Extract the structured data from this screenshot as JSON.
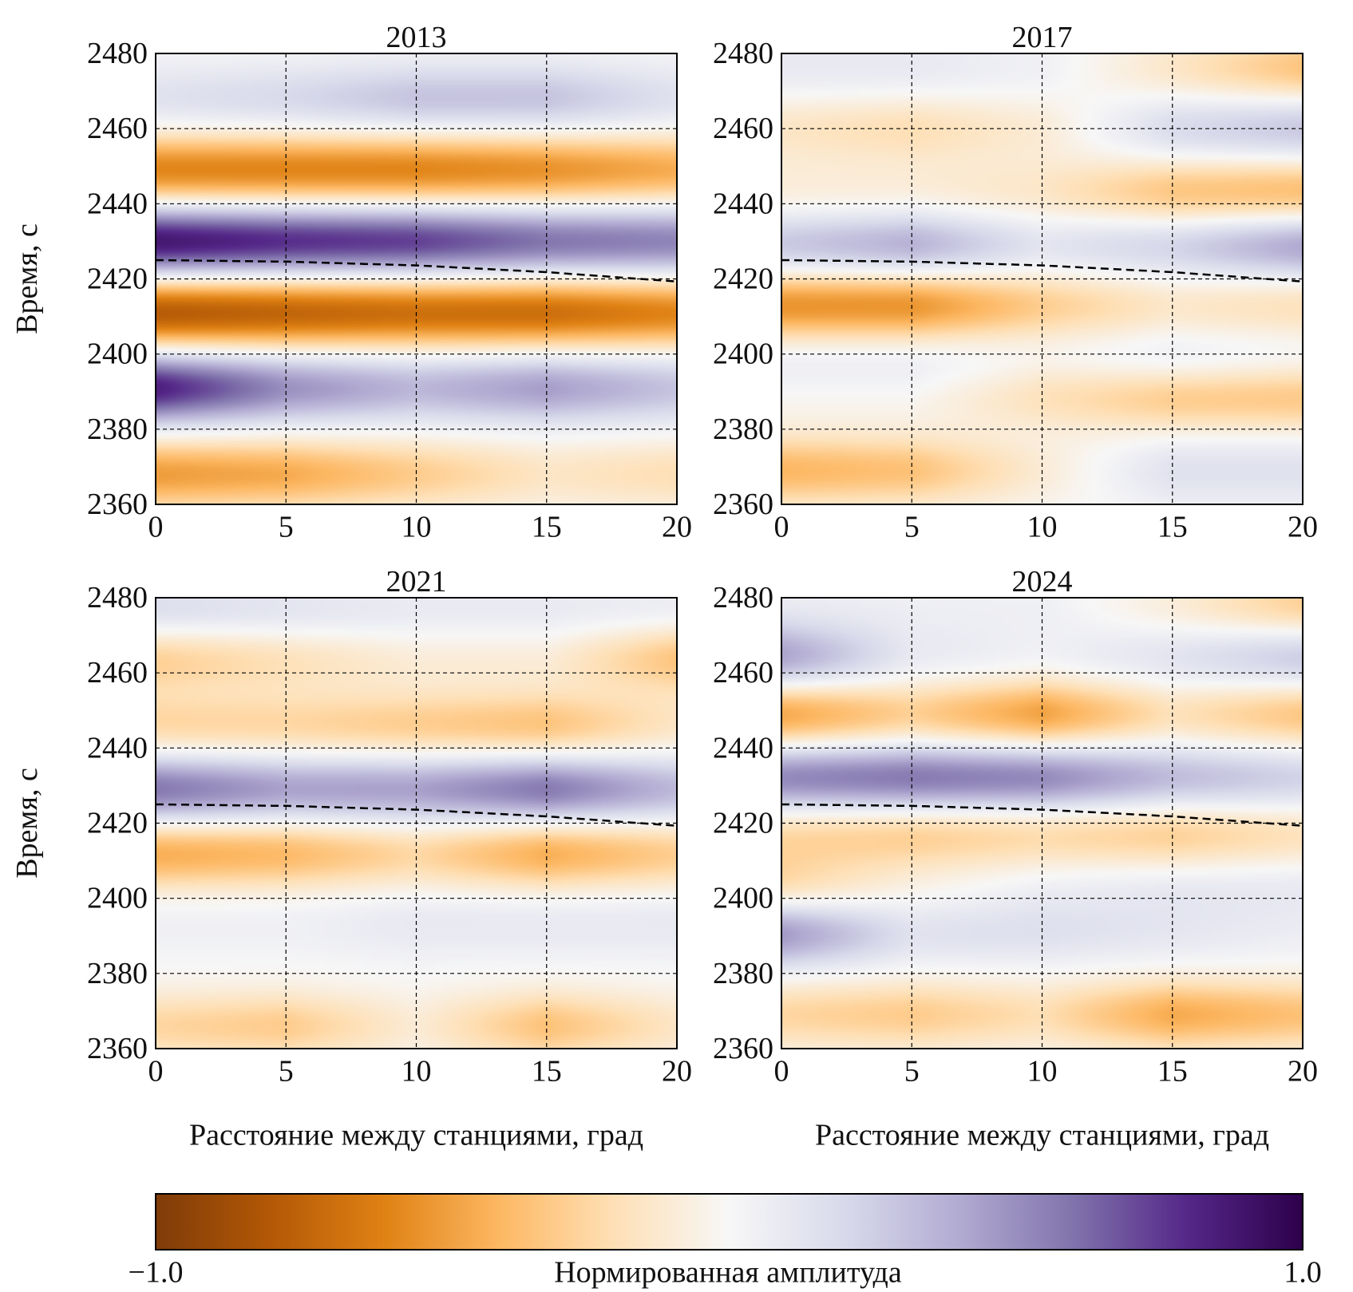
{
  "figure": {
    "colorbar": {
      "label": "Нормированная амплитуда",
      "min_label": "−1.0",
      "max_label": "1.0",
      "vmin": -1.0,
      "vmax": 1.0,
      "colormap": "PuOr",
      "colors": [
        "#7f3b08",
        "#b35806",
        "#e08214",
        "#fdb863",
        "#fee0b6",
        "#f7f7f7",
        "#d8daeb",
        "#b2abd2",
        "#8073ac",
        "#542788",
        "#2d004b"
      ]
    }
  },
  "chart_data": [
    {
      "type": "heatmap",
      "title": "2013",
      "xlabel": "",
      "ylabel": "Время, с",
      "xlim": [
        0,
        20
      ],
      "ylim": [
        2360,
        2480
      ],
      "xticks": [
        "0",
        "5",
        "10",
        "15",
        "20"
      ],
      "yticks": [
        "2360",
        "2380",
        "2400",
        "2420",
        "2440",
        "2460",
        "2480"
      ],
      "grid": true,
      "bands": [
        {
          "t": 2468,
          "a": [
            0.15,
            0.2,
            0.3,
            0.3,
            0.15
          ]
        },
        {
          "t": 2449,
          "a": [
            -0.6,
            -0.6,
            -0.6,
            -0.55,
            -0.45
          ]
        },
        {
          "t": 2430,
          "a": [
            0.9,
            0.8,
            0.75,
            0.6,
            0.55
          ]
        },
        {
          "t": 2411,
          "a": [
            -0.8,
            -0.75,
            -0.7,
            -0.7,
            -0.6
          ]
        },
        {
          "t": 2391,
          "a": [
            0.85,
            0.5,
            0.35,
            0.45,
            0.3
          ]
        },
        {
          "t": 2368,
          "a": [
            -0.5,
            -0.45,
            -0.3,
            -0.15,
            -0.2
          ]
        }
      ],
      "reference_curve": {
        "x": [
          0,
          5,
          10,
          15,
          20
        ],
        "y": [
          2425.0,
          2424.6,
          2423.6,
          2421.8,
          2419.3
        ]
      }
    },
    {
      "type": "heatmap",
      "title": "2017",
      "xlabel": "",
      "ylabel": "",
      "xlim": [
        0,
        20
      ],
      "ylim": [
        2360,
        2480
      ],
      "xticks": [
        "0",
        "5",
        "10",
        "15",
        "20"
      ],
      "yticks": [
        "2360",
        "2380",
        "2400",
        "2420",
        "2440",
        "2460",
        "2480"
      ],
      "grid": true,
      "bands": [
        {
          "t": 2476,
          "a": [
            0.1,
            0.1,
            0.05,
            -0.15,
            -0.35
          ]
        },
        {
          "t": 2460,
          "a": [
            -0.15,
            -0.2,
            -0.1,
            0.2,
            0.3
          ]
        },
        {
          "t": 2443,
          "a": [
            -0.1,
            -0.1,
            -0.15,
            -0.35,
            -0.4
          ]
        },
        {
          "t": 2429,
          "a": [
            0.3,
            0.4,
            0.15,
            0.25,
            0.45
          ]
        },
        {
          "t": 2413,
          "a": [
            -0.55,
            -0.55,
            -0.3,
            -0.15,
            -0.2
          ]
        },
        {
          "t": 2397,
          "a": [
            0.1,
            0.1,
            0.05,
            0.15,
            0.1
          ]
        },
        {
          "t": 2389,
          "a": [
            -0.05,
            -0.05,
            -0.2,
            -0.35,
            -0.35
          ]
        },
        {
          "t": 2369,
          "a": [
            -0.4,
            -0.35,
            -0.1,
            0.15,
            0.15
          ]
        }
      ],
      "reference_curve": {
        "x": [
          0,
          5,
          10,
          15,
          20
        ],
        "y": [
          2425.0,
          2424.6,
          2423.6,
          2421.8,
          2419.3
        ]
      }
    },
    {
      "type": "heatmap",
      "title": "2021",
      "xlabel": "Расстояние между станциями, град",
      "ylabel": "Время, с",
      "xlim": [
        0,
        20
      ],
      "ylim": [
        2360,
        2480
      ],
      "xticks": [
        "0",
        "5",
        "10",
        "15",
        "20"
      ],
      "yticks": [
        "2360",
        "2380",
        "2400",
        "2420",
        "2440",
        "2460",
        "2480"
      ],
      "grid": true,
      "bands": [
        {
          "t": 2476,
          "a": [
            0.2,
            0.15,
            0.1,
            0.1,
            0.1
          ]
        },
        {
          "t": 2464,
          "a": [
            -0.3,
            -0.2,
            -0.1,
            -0.1,
            -0.35
          ]
        },
        {
          "t": 2446,
          "a": [
            -0.25,
            -0.25,
            -0.3,
            -0.35,
            -0.15
          ]
        },
        {
          "t": 2429,
          "a": [
            0.6,
            0.45,
            0.45,
            0.6,
            0.35
          ]
        },
        {
          "t": 2412,
          "a": [
            -0.45,
            -0.4,
            -0.25,
            -0.45,
            -0.3
          ]
        },
        {
          "t": 2393,
          "a": [
            0.05,
            0.05,
            0.1,
            0.1,
            0.1
          ]
        },
        {
          "t": 2366,
          "a": [
            -0.25,
            -0.3,
            -0.1,
            -0.35,
            -0.15
          ]
        }
      ],
      "reference_curve": {
        "x": [
          0,
          5,
          10,
          15,
          20
        ],
        "y": [
          2425.0,
          2424.6,
          2423.6,
          2421.8,
          2419.3
        ]
      }
    },
    {
      "type": "heatmap",
      "title": "2024",
      "xlabel": "Расстояние между станциями, град",
      "ylabel": "",
      "xlim": [
        0,
        20
      ],
      "ylim": [
        2360,
        2480
      ],
      "xticks": [
        "0",
        "5",
        "10",
        "15",
        "20"
      ],
      "yticks": [
        "2360",
        "2380",
        "2400",
        "2420",
        "2440",
        "2460",
        "2480"
      ],
      "grid": true,
      "bands": [
        {
          "t": 2478,
          "a": [
            0.05,
            0.05,
            0.05,
            -0.1,
            -0.3
          ]
        },
        {
          "t": 2464,
          "a": [
            0.45,
            0.1,
            0.05,
            0.15,
            0.3
          ]
        },
        {
          "t": 2449,
          "a": [
            -0.5,
            -0.3,
            -0.5,
            -0.2,
            -0.35
          ]
        },
        {
          "t": 2432,
          "a": [
            0.55,
            0.6,
            0.55,
            0.35,
            0.25
          ]
        },
        {
          "t": 2417,
          "a": [
            -0.25,
            -0.3,
            -0.25,
            -0.3,
            -0.2
          ]
        },
        {
          "t": 2403,
          "a": [
            -0.25,
            -0.05,
            0.05,
            0.1,
            0.1
          ]
        },
        {
          "t": 2391,
          "a": [
            0.5,
            0.15,
            0.15,
            0.1,
            0.05
          ]
        },
        {
          "t": 2369,
          "a": [
            -0.25,
            -0.3,
            -0.2,
            -0.45,
            -0.35
          ]
        }
      ],
      "reference_curve": {
        "x": [
          0,
          5,
          10,
          15,
          20
        ],
        "y": [
          2425.0,
          2424.6,
          2423.6,
          2421.8,
          2419.3
        ]
      }
    }
  ]
}
